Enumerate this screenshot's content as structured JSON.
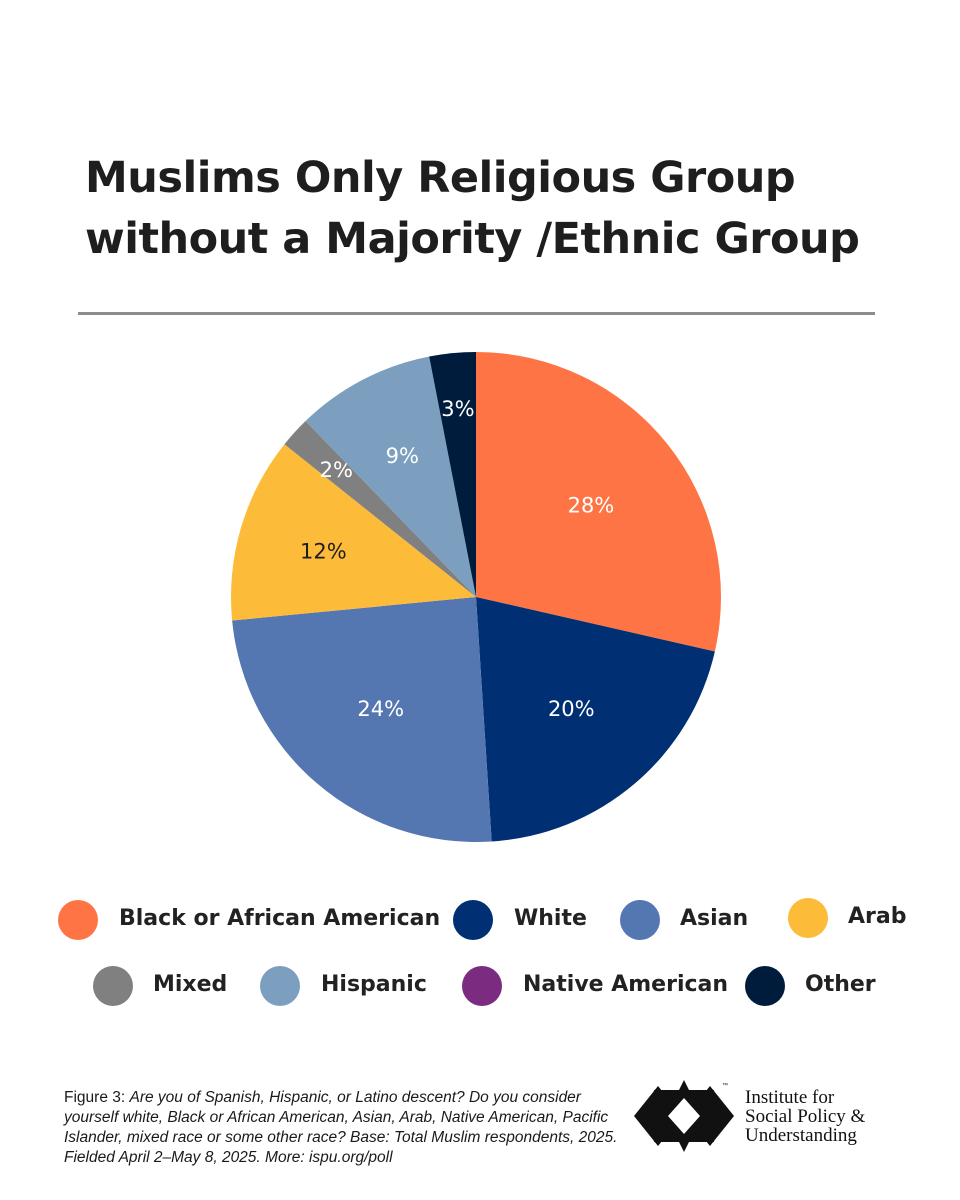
{
  "title": {
    "line1": "Muslims Only Religious Group",
    "line2": "without a Majority /Ethnic Group"
  },
  "chart_data": {
    "type": "pie",
    "categories": [
      "Black or African American",
      "White",
      "Asian",
      "Arab",
      "Mixed",
      "Hispanic",
      "Native American",
      "Other"
    ],
    "values": [
      28,
      20,
      24,
      12,
      2,
      9,
      0,
      3
    ],
    "labels": [
      "28%",
      "20%",
      "24%",
      "12%",
      "2%",
      "9%",
      "",
      "3%"
    ],
    "colors": [
      "#ff7445",
      "#003073",
      "#5577b1",
      "#fdbb3a",
      "#808080",
      "#7c9fbf",
      "#7b2b80",
      "#001c3c"
    ],
    "label_colors": [
      "#ffffff",
      "#ffffff",
      "#ffffff",
      "#1e1e1e",
      "#ffffff",
      "#ffffff",
      "#ffffff",
      "#ffffff"
    ],
    "start": "12 o'clock",
    "direction": "clockwise",
    "legend_position": "bottom"
  },
  "caption": {
    "figure_label": "Figure 3:",
    "text": "Are you of Spanish, Hispanic, or Latino descent? Do you consider yourself white, Black or African American, Asian, Arab, Native American, Pacific Islander, mixed race or some other race? Base: Total Muslim respondents, 2025. Fielded April 2–May 8, 2025. More: ispu.org/poll"
  },
  "logo": {
    "line1": "Institute for",
    "line2": "Social Policy &",
    "line3": "Understanding",
    "trademark": "™",
    "icon": "ispu-logo-mark"
  }
}
